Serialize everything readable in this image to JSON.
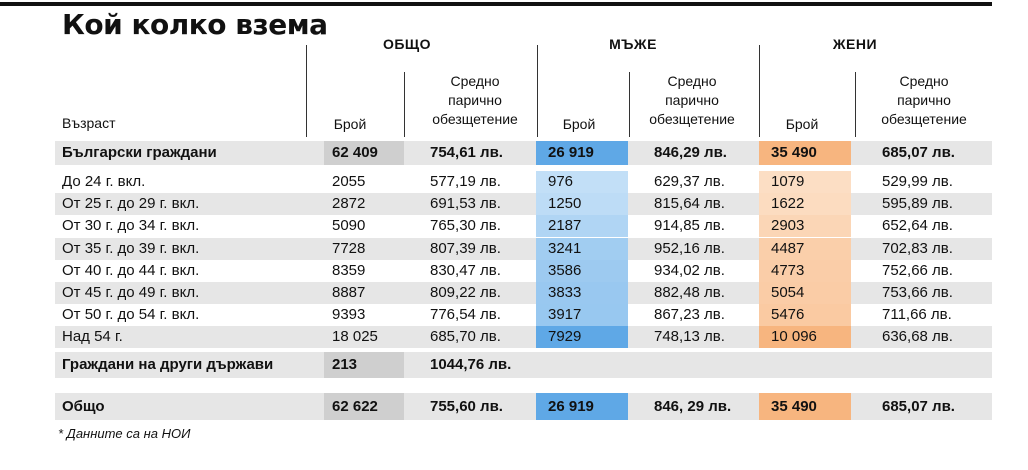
{
  "title": "Кой колко взема",
  "footnote": "* Данните са на НОИ",
  "colors": {
    "men_dark": "#5fa8e6",
    "men_light": "#cfe6f9",
    "women_dark": "#f7b57f",
    "women_light": "#fde3cc",
    "row_shade": "#e6e6e6",
    "count_shade": "#cfcfcf"
  },
  "chart_data": {
    "type": "table",
    "title": "Кой колко взема",
    "groups": [
      "ОБЩО",
      "МЪЖЕ",
      "ЖЕНИ"
    ],
    "columns": [
      "Възраст",
      "Брой",
      "Средно парично обезщетение",
      "Брой",
      "Средно парично обезщетение",
      "Брой",
      "Средно парично обезщетение"
    ],
    "column_headers": {
      "age": "Възраст",
      "count": "Брой",
      "avg_line1": "Средно",
      "avg_line2": "парично",
      "avg_line3": "обезщетение"
    },
    "summary_row": {
      "label": "Български граждани",
      "total_count": "62 409",
      "total_avg": "754,61 лв.",
      "men_count": "26 919",
      "men_avg": "846,29 лв.",
      "women_count": "35 490",
      "women_avg": "685,07 лв."
    },
    "rows": [
      {
        "label": "До 24 г. вкл.",
        "total_count": "2055",
        "total_avg": "577,19 лв.",
        "men_count": "976",
        "men_avg": "629,37 лв.",
        "women_count": "1079",
        "women_avg": "529,99 лв.",
        "men_level": 0.12,
        "women_level": 0.11
      },
      {
        "label": "От 25 г. до 29 г. вкл.",
        "total_count": "2872",
        "total_avg": "691,53 лв.",
        "men_count": "1250",
        "men_avg": "815,64 лв.",
        "women_count": "1622",
        "women_avg": "595,89 лв.",
        "men_level": 0.16,
        "women_level": 0.16
      },
      {
        "label": "От 30 г. до 34 г. вкл.",
        "total_count": "5090",
        "total_avg": "765,30 лв.",
        "men_count": "2187",
        "men_avg": "914,85 лв.",
        "women_count": "2903",
        "women_avg": "652,64 лв.",
        "men_level": 0.28,
        "women_level": 0.29
      },
      {
        "label": "От 35 г. до 39 г. вкл.",
        "total_count": "7728",
        "total_avg": "807,39 лв.",
        "men_count": "3241",
        "men_avg": "952,16 лв.",
        "women_count": "4487",
        "women_avg": "702,83 лв.",
        "men_level": 0.41,
        "women_level": 0.44
      },
      {
        "label": "От 40 г. до 44 г. вкл.",
        "total_count": "8359",
        "total_avg": "830,47 лв.",
        "men_count": "3586",
        "men_avg": "934,02 лв.",
        "women_count": "4773",
        "women_avg": "752,66 лв.",
        "men_level": 0.45,
        "women_level": 0.47
      },
      {
        "label": "От 45 г. до 49 г. вкл.",
        "total_count": "8887",
        "total_avg": "809,22 лв.",
        "men_count": "3833",
        "men_avg": "882,48 лв.",
        "women_count": "5054",
        "women_avg": "753,66 лв.",
        "men_level": 0.48,
        "women_level": 0.5
      },
      {
        "label": "От 50 г. до 54 г. вкл.",
        "total_count": "9393",
        "total_avg": "776,54 лв.",
        "men_count": "3917",
        "men_avg": "867,23 лв.",
        "women_count": "5476",
        "women_avg": "711,66 лв.",
        "men_level": 0.49,
        "women_level": 0.54
      },
      {
        "label": "Над 54 г.",
        "total_count": "18 025",
        "total_avg": "685,70 лв.",
        "men_count": "7929",
        "men_avg": "748,13 лв.",
        "women_count": "10 096",
        "women_avg": "636,68 лв.",
        "men_level": 1.0,
        "women_level": 1.0
      }
    ],
    "foreign_row": {
      "label": "Граждани на други държави",
      "total_count": "213",
      "total_avg": "1044,76 лв."
    },
    "total_row": {
      "label": "Общо",
      "total_count": "62 622",
      "total_avg": "755,60 лв.",
      "men_count": "26 919",
      "men_avg": "846, 29 лв.",
      "women_count": "35 490",
      "women_avg": "685,07 лв."
    }
  }
}
